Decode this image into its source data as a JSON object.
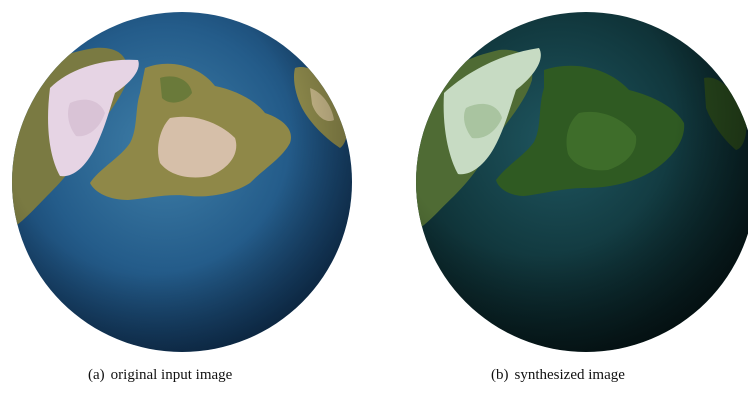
{
  "figure": {
    "panels": [
      {
        "label": "(a)",
        "caption": "original input image"
      },
      {
        "label": "(b)",
        "caption": "synthesized image"
      }
    ]
  },
  "colors": {
    "ocean_a": "#1d4e7c",
    "ocean_b": "#0c2b30",
    "land_a": "#8a8a4a",
    "land_b": "#3d6a24",
    "ice": "#e3d3e3"
  }
}
